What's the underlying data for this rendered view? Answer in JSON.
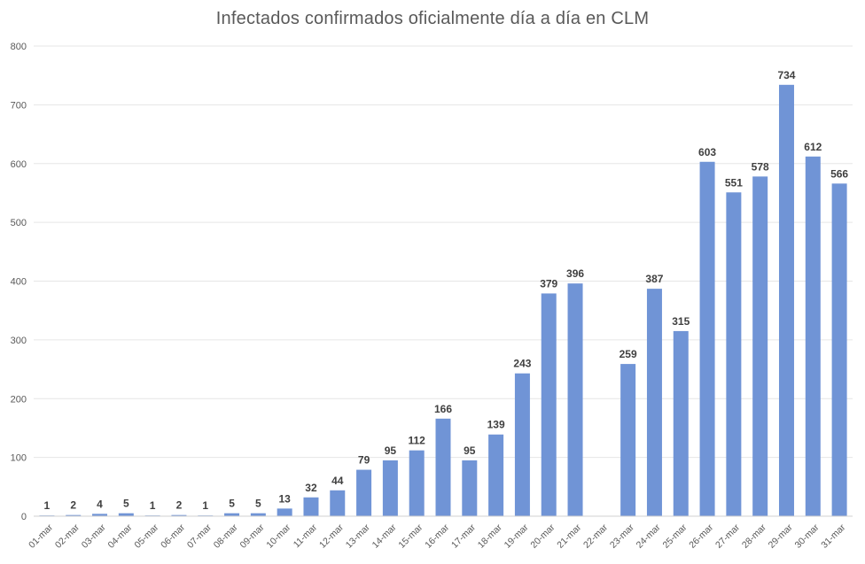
{
  "chart_data": {
    "type": "bar",
    "title": "Infectados confirmados oficialmente día a día en CLM",
    "categories": [
      "01-mar",
      "02-mar",
      "03-mar",
      "04-mar",
      "05-mar",
      "06-mar",
      "07-mar",
      "08-mar",
      "09-mar",
      "10-mar",
      "11-mar",
      "12-mar",
      "13-mar",
      "14-mar",
      "15-mar",
      "16-mar",
      "17-mar",
      "18-mar",
      "19-mar",
      "20-mar",
      "21-mar",
      "22-mar",
      "23-mar",
      "24-mar",
      "25-mar",
      "26-mar",
      "27-mar",
      "28-mar",
      "29-mar",
      "30-mar",
      "31-mar"
    ],
    "values": [
      1,
      2,
      4,
      5,
      1,
      2,
      1,
      5,
      5,
      13,
      32,
      44,
      79,
      95,
      112,
      166,
      95,
      139,
      243,
      379,
      396,
      null,
      259,
      387,
      315,
      603,
      551,
      578,
      734,
      612,
      566
    ],
    "yticks": [
      0,
      100,
      200,
      300,
      400,
      500,
      600,
      700,
      800
    ],
    "ylim": [
      0,
      800
    ],
    "grid": true,
    "xlabel": "",
    "ylabel": "",
    "bar_color": "#7094d6"
  }
}
